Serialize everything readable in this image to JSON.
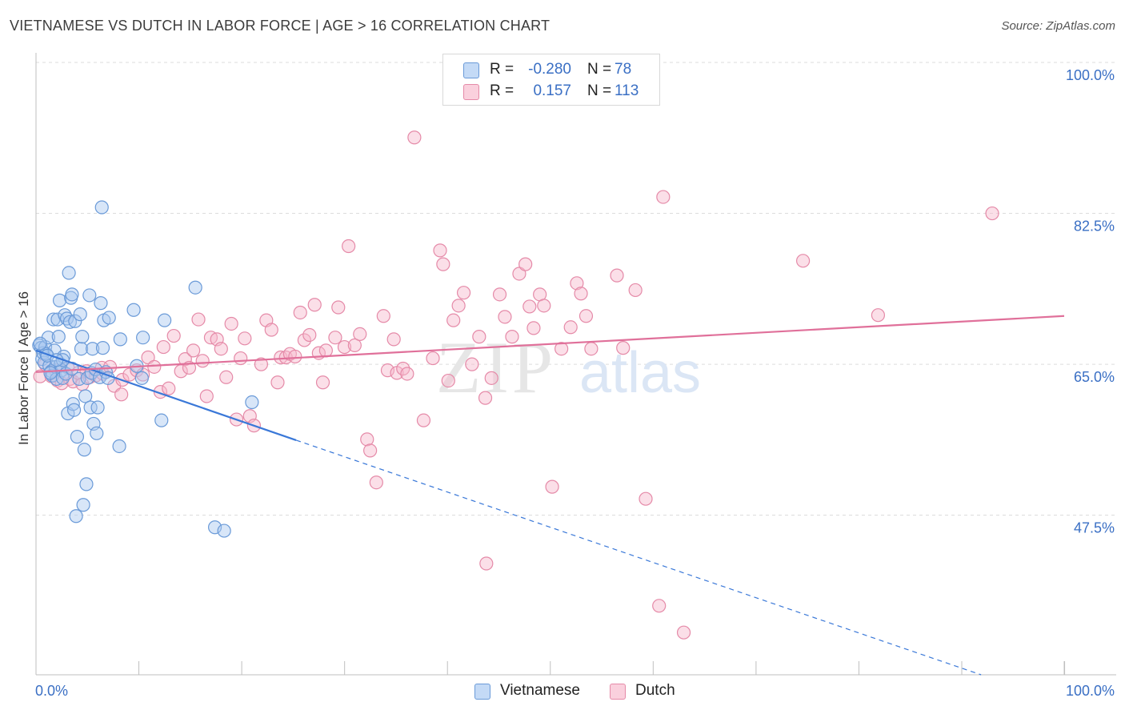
{
  "title": "VIETNAMESE VS DUTCH IN LABOR FORCE | AGE > 16 CORRELATION CHART",
  "source": "Source: ZipAtlas.com",
  "colors": {
    "blue_fill": "#a9c8f0",
    "blue_stroke": "#6a9ad8",
    "blue_line": "#3a78d8",
    "pink_fill": "#f6b8cb",
    "pink_stroke": "#e58aa8",
    "pink_line": "#e0709a",
    "axis_text": "#3a6fc4",
    "grid": "#dcdcdc"
  },
  "legend": {
    "rows": [
      {
        "series": "Vietnamese",
        "r_label": "R =",
        "r_value": "-0.280",
        "n_label": "N =",
        "n_value": "78"
      },
      {
        "series": "Dutch",
        "r_label": "R =",
        "r_value": "0.157",
        "n_label": "N =",
        "n_value": "113"
      }
    ]
  },
  "watermark": {
    "zip": "ZIP",
    "atlas": "atlas"
  },
  "chart_data": {
    "type": "scatter",
    "title": "VIETNAMESE VS DUTCH IN LABOR FORCE | AGE > 16 CORRELATION CHART",
    "xlabel": "",
    "ylabel": "In Labor Force | Age > 16",
    "xlim": [
      0,
      100
    ],
    "ylim": [
      29,
      100
    ],
    "x_tick_labels": [
      "0.0%",
      "100.0%"
    ],
    "y_ticks": [
      47.5,
      65.0,
      82.5,
      100.0
    ],
    "y_tick_labels": [
      "47.5%",
      "65.0%",
      "82.5%",
      "100.0%"
    ],
    "series": [
      {
        "name": "Vietnamese",
        "trend": {
          "x0": 0,
          "y0": 66.6,
          "x1": 25.3,
          "y1": 56.2,
          "dash_to_x": 100,
          "dash_to_y": 25.7
        },
        "points": [
          [
            0.3,
            67.2
          ],
          [
            0.5,
            66.9
          ],
          [
            0.6,
            65.6
          ],
          [
            0.7,
            66.3
          ],
          [
            0.8,
            65.2
          ],
          [
            0.9,
            67.0
          ],
          [
            1.0,
            66.2
          ],
          [
            1.2,
            68.1
          ],
          [
            1.3,
            64.8
          ],
          [
            1.5,
            64.2
          ],
          [
            1.6,
            63.7
          ],
          [
            1.7,
            70.2
          ],
          [
            1.8,
            66.6
          ],
          [
            1.9,
            64.7
          ],
          [
            2.0,
            63.3
          ],
          [
            2.1,
            70.2
          ],
          [
            2.2,
            68.2
          ],
          [
            2.3,
            72.4
          ],
          [
            2.4,
            65.0
          ],
          [
            2.5,
            64.3
          ],
          [
            2.6,
            63.4
          ],
          [
            2.7,
            65.9
          ],
          [
            2.8,
            70.7
          ],
          [
            2.9,
            63.9
          ],
          [
            3.0,
            70.3
          ],
          [
            3.1,
            59.3
          ],
          [
            3.2,
            75.6
          ],
          [
            3.3,
            69.9
          ],
          [
            3.4,
            72.7
          ],
          [
            3.5,
            73.1
          ],
          [
            3.6,
            60.4
          ],
          [
            3.7,
            59.7
          ],
          [
            3.8,
            70.0
          ],
          [
            3.9,
            47.4
          ],
          [
            4.0,
            56.6
          ],
          [
            4.2,
            63.3
          ],
          [
            4.3,
            70.8
          ],
          [
            4.4,
            66.8
          ],
          [
            4.5,
            68.2
          ],
          [
            4.6,
            48.7
          ],
          [
            4.7,
            55.1
          ],
          [
            4.8,
            61.3
          ],
          [
            4.9,
            51.1
          ],
          [
            5.0,
            63.4
          ],
          [
            5.2,
            73.0
          ],
          [
            5.3,
            60.0
          ],
          [
            5.4,
            64.0
          ],
          [
            5.5,
            66.8
          ],
          [
            5.6,
            58.1
          ],
          [
            5.8,
            64.4
          ],
          [
            5.9,
            57.0
          ],
          [
            6.0,
            60.0
          ],
          [
            6.2,
            63.5
          ],
          [
            6.3,
            72.1
          ],
          [
            6.4,
            83.2
          ],
          [
            6.5,
            66.9
          ],
          [
            6.6,
            70.1
          ],
          [
            6.8,
            64.1
          ],
          [
            7.0,
            63.4
          ],
          [
            7.1,
            70.4
          ],
          [
            8.1,
            55.5
          ],
          [
            8.2,
            67.9
          ],
          [
            9.5,
            71.3
          ],
          [
            9.8,
            64.8
          ],
          [
            10.3,
            63.4
          ],
          [
            10.4,
            68.1
          ],
          [
            12.2,
            58.5
          ],
          [
            12.5,
            70.1
          ],
          [
            15.5,
            73.9
          ],
          [
            17.4,
            46.1
          ],
          [
            18.3,
            45.7
          ],
          [
            21.0,
            60.6
          ],
          [
            1.1,
            66.0
          ],
          [
            0.4,
            67.4
          ],
          [
            2.6,
            65.5
          ],
          [
            3.5,
            64.5
          ],
          [
            1.4,
            64.0
          ],
          [
            2.0,
            65.5
          ]
        ]
      },
      {
        "name": "Dutch",
        "trend": {
          "x0": 0,
          "y0": 64.1,
          "x1": 100,
          "y1": 70.6
        },
        "points": [
          [
            0.4,
            63.6
          ],
          [
            0.9,
            65.0
          ],
          [
            1.5,
            63.6
          ],
          [
            1.9,
            64.3
          ],
          [
            2.1,
            63.1
          ],
          [
            2.5,
            62.8
          ],
          [
            3.1,
            64.6
          ],
          [
            3.3,
            63.3
          ],
          [
            3.6,
            63.0
          ],
          [
            4.1,
            64.0
          ],
          [
            4.5,
            62.7
          ],
          [
            4.9,
            64.2
          ],
          [
            5.2,
            63.5
          ],
          [
            5.8,
            63.7
          ],
          [
            6.4,
            64.6
          ],
          [
            6.5,
            63.9
          ],
          [
            7.2,
            64.7
          ],
          [
            7.6,
            62.5
          ],
          [
            8.3,
            61.5
          ],
          [
            8.4,
            63.2
          ],
          [
            9.1,
            63.8
          ],
          [
            9.8,
            64.3
          ],
          [
            10.4,
            63.8
          ],
          [
            10.9,
            65.8
          ],
          [
            11.5,
            64.7
          ],
          [
            12.1,
            61.8
          ],
          [
            12.4,
            67.0
          ],
          [
            12.9,
            62.2
          ],
          [
            13.4,
            68.3
          ],
          [
            14.1,
            64.2
          ],
          [
            14.5,
            65.6
          ],
          [
            14.9,
            64.6
          ],
          [
            15.3,
            66.6
          ],
          [
            15.8,
            70.2
          ],
          [
            16.2,
            65.4
          ],
          [
            16.6,
            61.3
          ],
          [
            17.0,
            68.1
          ],
          [
            17.6,
            67.9
          ],
          [
            18.0,
            66.8
          ],
          [
            18.5,
            63.5
          ],
          [
            19.0,
            69.7
          ],
          [
            19.5,
            58.6
          ],
          [
            19.9,
            65.7
          ],
          [
            20.3,
            68.0
          ],
          [
            20.8,
            59.0
          ],
          [
            21.2,
            57.9
          ],
          [
            21.9,
            65.0
          ],
          [
            22.4,
            70.1
          ],
          [
            22.9,
            69.0
          ],
          [
            23.5,
            62.9
          ],
          [
            23.8,
            65.8
          ],
          [
            24.3,
            65.8
          ],
          [
            24.7,
            66.2
          ],
          [
            25.2,
            65.9
          ],
          [
            25.7,
            71.0
          ],
          [
            26.1,
            67.8
          ],
          [
            26.6,
            68.4
          ],
          [
            27.1,
            71.9
          ],
          [
            27.5,
            66.3
          ],
          [
            27.9,
            62.9
          ],
          [
            28.2,
            66.6
          ],
          [
            29.1,
            68.1
          ],
          [
            29.4,
            71.6
          ],
          [
            30.0,
            67.0
          ],
          [
            30.4,
            78.7
          ],
          [
            31.0,
            67.2
          ],
          [
            31.5,
            68.5
          ],
          [
            32.2,
            56.3
          ],
          [
            32.5,
            55.0
          ],
          [
            33.1,
            51.3
          ],
          [
            33.8,
            70.6
          ],
          [
            34.2,
            64.3
          ],
          [
            34.8,
            67.9
          ],
          [
            35.1,
            64.0
          ],
          [
            35.7,
            64.5
          ],
          [
            36.1,
            63.9
          ],
          [
            36.8,
            91.3
          ],
          [
            37.7,
            58.5
          ],
          [
            38.6,
            65.7
          ],
          [
            39.3,
            78.2
          ],
          [
            39.6,
            76.6
          ],
          [
            40.1,
            63.1
          ],
          [
            40.6,
            70.1
          ],
          [
            41.1,
            71.8
          ],
          [
            41.6,
            73.3
          ],
          [
            42.4,
            65.0
          ],
          [
            43.1,
            68.2
          ],
          [
            43.7,
            61.1
          ],
          [
            44.3,
            63.4
          ],
          [
            45.1,
            73.1
          ],
          [
            45.6,
            70.5
          ],
          [
            46.3,
            68.2
          ],
          [
            47.0,
            75.5
          ],
          [
            47.6,
            76.6
          ],
          [
            48.0,
            71.7
          ],
          [
            48.4,
            69.2
          ],
          [
            49.0,
            73.1
          ],
          [
            49.4,
            71.8
          ],
          [
            50.2,
            50.8
          ],
          [
            51.1,
            66.8
          ],
          [
            52.0,
            69.3
          ],
          [
            52.6,
            74.4
          ],
          [
            53.0,
            73.2
          ],
          [
            53.5,
            70.6
          ],
          [
            54.0,
            66.8
          ],
          [
            56.5,
            75.3
          ],
          [
            57.1,
            66.9
          ],
          [
            58.3,
            73.6
          ],
          [
            59.3,
            49.4
          ],
          [
            60.6,
            37.0
          ],
          [
            61.0,
            84.4
          ],
          [
            63.0,
            33.9
          ],
          [
            74.6,
            77.0
          ],
          [
            81.9,
            70.7
          ],
          [
            93.0,
            82.5
          ],
          [
            43.8,
            41.9
          ]
        ]
      }
    ]
  },
  "bottom_legend": [
    {
      "label": "Vietnamese"
    },
    {
      "label": "Dutch"
    }
  ]
}
